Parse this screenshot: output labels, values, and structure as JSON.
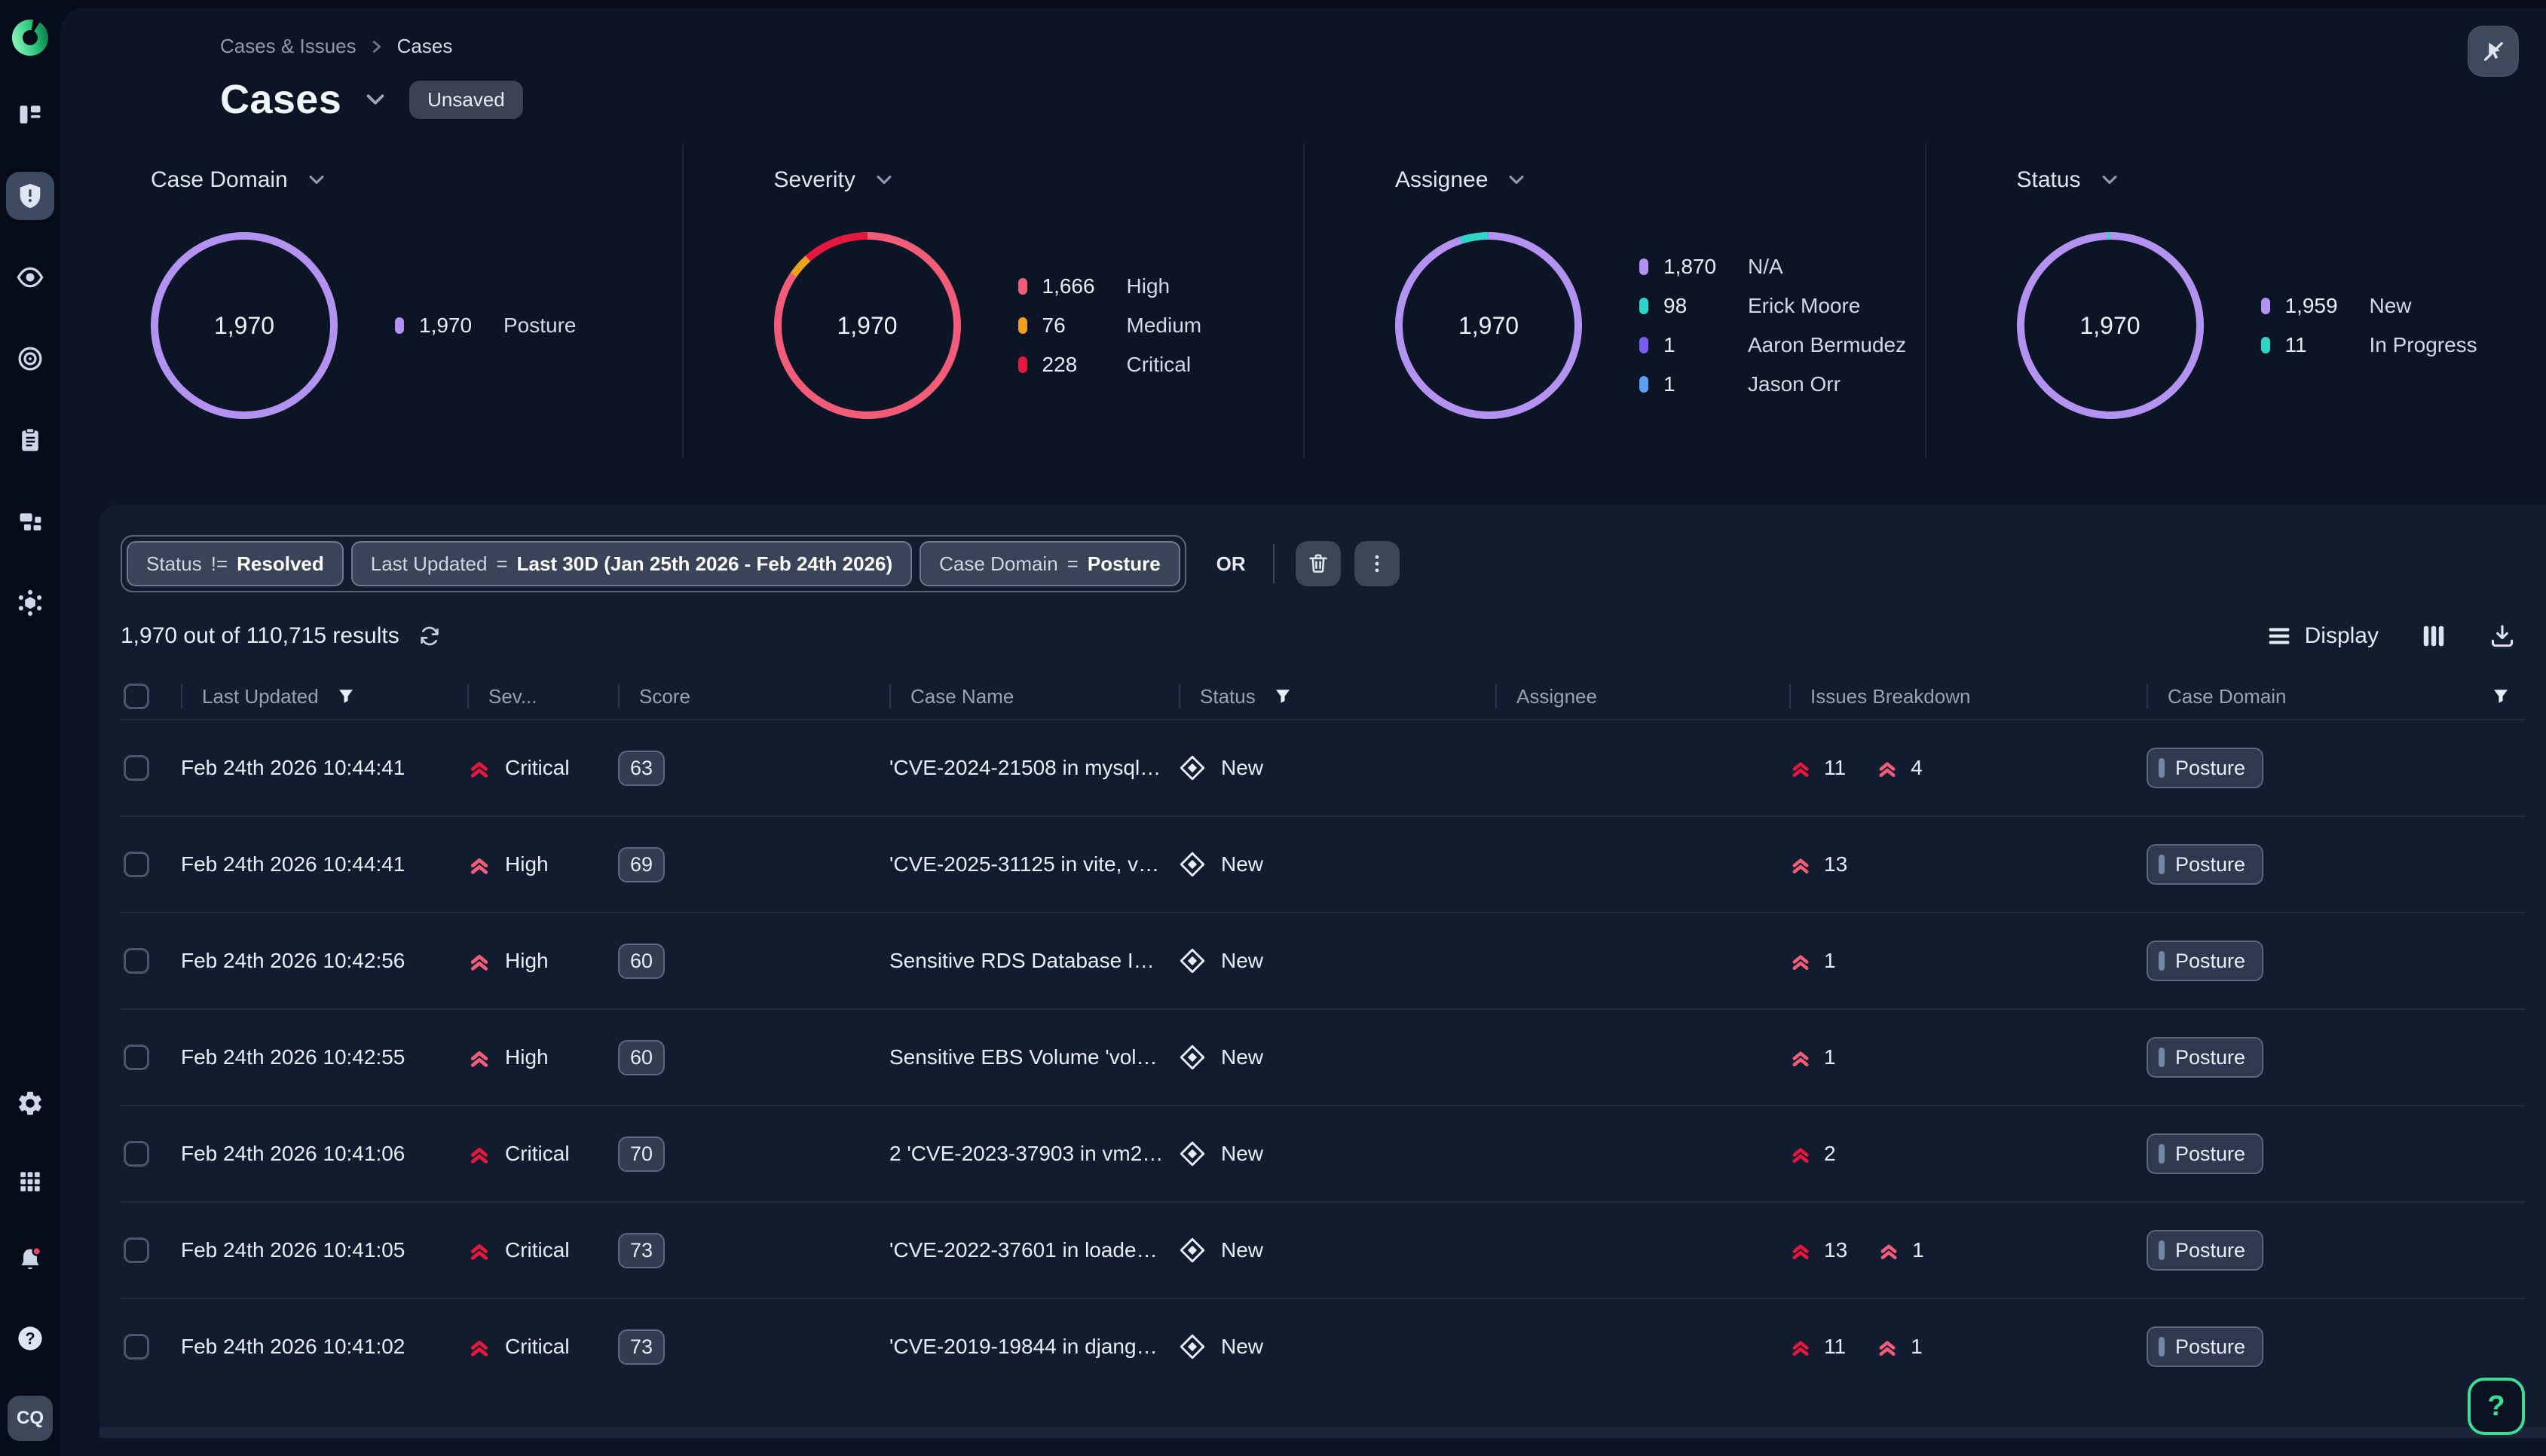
{
  "header": {
    "breadcrumb": [
      "Cases & Issues",
      "Cases"
    ],
    "title": "Cases",
    "unsaved_badge": "Unsaved"
  },
  "sidebar": {
    "nav_icons": [
      "layout",
      "shield-alert",
      "eye",
      "bullseye",
      "clipboard-list",
      "blocks",
      "hive"
    ],
    "active_item": "shield-alert",
    "bottom_icons": [
      "gear",
      "apps-grid",
      "bell",
      "help-circle"
    ],
    "notification_dot": true,
    "avatar_label": "CQ"
  },
  "top_right_icon": "pointer-off",
  "charts": [
    {
      "label": "Case Domain",
      "total": "1,970",
      "type": "donut",
      "legend": [
        {
          "value": "1,970",
          "num": 1970,
          "label": "Posture",
          "color": "#b492f2"
        }
      ]
    },
    {
      "label": "Severity",
      "total": "1,970",
      "type": "donut",
      "legend": [
        {
          "value": "1,666",
          "num": 1666,
          "label": "High",
          "color": "#f25c78"
        },
        {
          "value": "76",
          "num": 76,
          "label": "Medium",
          "color": "#f0a020"
        },
        {
          "value": "228",
          "num": 228,
          "label": "Critical",
          "color": "#e5173f"
        }
      ]
    },
    {
      "label": "Assignee",
      "total": "1,970",
      "type": "donut",
      "legend": [
        {
          "value": "1,870",
          "num": 1870,
          "label": "N/A",
          "color": "#b492f2"
        },
        {
          "value": "98",
          "num": 98,
          "label": "Erick Moore",
          "color": "#2fd5c8"
        },
        {
          "value": "1",
          "num": 1,
          "label": "Aaron Bermudez",
          "color": "#7c5cf0"
        },
        {
          "value": "1",
          "num": 1,
          "label": "Jason Orr",
          "color": "#5ba0f5"
        }
      ]
    },
    {
      "label": "Status",
      "total": "1,970",
      "type": "donut",
      "legend": [
        {
          "value": "1,959",
          "num": 1959,
          "label": "New",
          "color": "#b492f2"
        },
        {
          "value": "11",
          "num": 11,
          "label": "In Progress",
          "color": "#2fd5c8"
        }
      ]
    }
  ],
  "filters": {
    "pills": [
      {
        "field": "Status",
        "operator": "!=",
        "value": "Resolved"
      },
      {
        "field": "Last Updated",
        "operator": "=",
        "value": "Last 30D (Jan 25th 2026 - Feb 24th 2026)"
      },
      {
        "field": "Case Domain",
        "operator": "=",
        "value": "Posture"
      }
    ],
    "conjunction": "OR"
  },
  "results": {
    "summary": "1,970 out of 110,715 results",
    "display_label": "Display"
  },
  "table": {
    "columns": [
      {
        "label": "Last Updated",
        "filter": true
      },
      {
        "label": "Sev...",
        "filter": false
      },
      {
        "label": "Score",
        "filter": false
      },
      {
        "label": "Case Name",
        "filter": false
      },
      {
        "label": "Status",
        "filter": true
      },
      {
        "label": "Assignee",
        "filter": false
      },
      {
        "label": "Issues Breakdown",
        "filter": false
      },
      {
        "label": "Case Domain",
        "filter": true,
        "filter_right": true
      }
    ],
    "rows": [
      {
        "last_updated": "Feb 24th 2026 10:44:41",
        "severity": {
          "label": "Critical",
          "level": "critical"
        },
        "score": "63",
        "case_name": "'CVE-2024-21508 in mysql2, ...",
        "status": "New",
        "assignee": "",
        "issues": [
          {
            "level": "critical",
            "count": "11"
          },
          {
            "level": "high",
            "count": "4"
          }
        ],
        "case_domain": "Posture"
      },
      {
        "last_updated": "Feb 24th 2026 10:44:41",
        "severity": {
          "label": "High",
          "level": "high"
        },
        "score": "69",
        "case_name": "'CVE-2025-31125 in vite, vers...",
        "status": "New",
        "assignee": "",
        "issues": [
          {
            "level": "high",
            "count": "13"
          }
        ],
        "case_domain": "Posture"
      },
      {
        "last_updated": "Feb 24th 2026 10:42:56",
        "severity": {
          "label": "High",
          "level": "high"
        },
        "score": "60",
        "case_name": "Sensitive RDS Database Insta...",
        "status": "New",
        "assignee": "",
        "issues": [
          {
            "level": "high",
            "count": "1"
          }
        ],
        "case_domain": "Posture"
      },
      {
        "last_updated": "Feb 24th 2026 10:42:55",
        "severity": {
          "label": "High",
          "level": "high"
        },
        "score": "60",
        "case_name": "Sensitive EBS Volume 'vol-05...",
        "status": "New",
        "assignee": "",
        "issues": [
          {
            "level": "high",
            "count": "1"
          }
        ],
        "case_domain": "Posture"
      },
      {
        "last_updated": "Feb 24th 2026 10:41:06",
        "severity": {
          "label": "Critical",
          "level": "critical"
        },
        "score": "70",
        "case_name": "2 'CVE-2023-37903 in vm2, v...",
        "status": "New",
        "assignee": "",
        "issues": [
          {
            "level": "critical",
            "count": "2"
          }
        ],
        "case_domain": "Posture"
      },
      {
        "last_updated": "Feb 24th 2026 10:41:05",
        "severity": {
          "label": "Critical",
          "level": "critical"
        },
        "score": "73",
        "case_name": "'CVE-2022-37601 in loader-u...",
        "status": "New",
        "assignee": "",
        "issues": [
          {
            "level": "critical",
            "count": "13"
          },
          {
            "level": "high",
            "count": "1"
          }
        ],
        "case_domain": "Posture"
      },
      {
        "last_updated": "Feb 24th 2026 10:41:02",
        "severity": {
          "label": "Critical",
          "level": "critical"
        },
        "score": "73",
        "case_name": "'CVE-2019-19844 in django, ...",
        "status": "New",
        "assignee": "",
        "issues": [
          {
            "level": "critical",
            "count": "11"
          },
          {
            "level": "high",
            "count": "1"
          }
        ],
        "case_domain": "Posture"
      }
    ]
  },
  "colors": {
    "accent_purple": "#b492f2",
    "teal": "#2fd5c8",
    "high_pink": "#f25c78",
    "critical_red": "#e5173f",
    "medium_orange": "#f0a020",
    "assignee_violet": "#7c5cf0",
    "assignee_blue": "#5ba0f5",
    "logo_green": "#3ddc97"
  }
}
